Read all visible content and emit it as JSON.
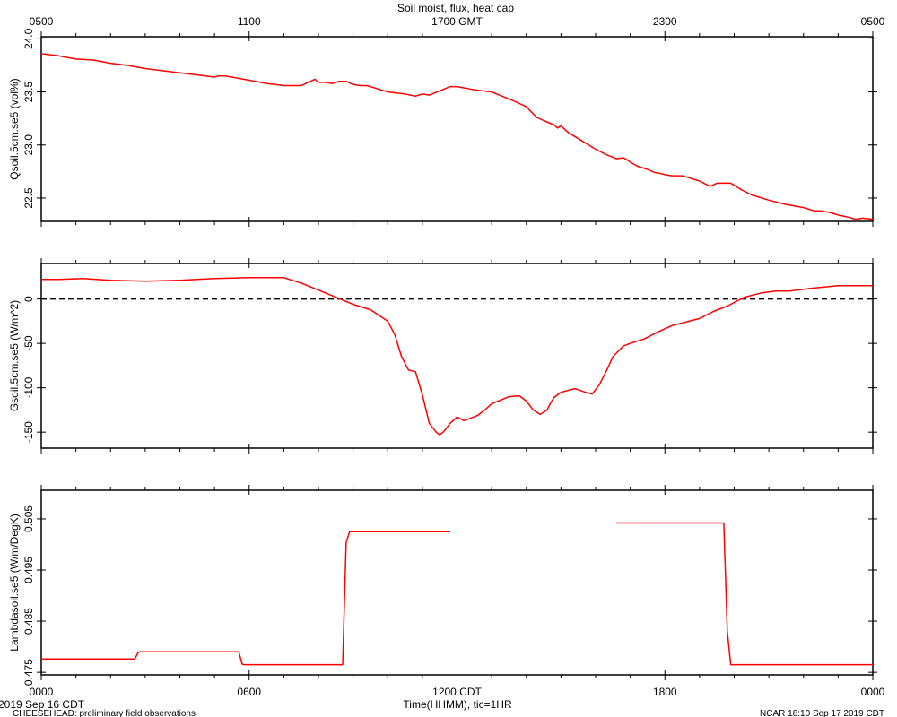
{
  "title": "Soil moist, flux, heat cap",
  "top_axis": {
    "ticks": [
      "0500",
      "1100",
      "1700 GMT",
      "2300",
      "0500"
    ]
  },
  "bottom_axis": {
    "ticks": [
      "0000",
      "0600",
      "1200 CDT",
      "1800",
      "0000"
    ],
    "label": "Time(HHMM), tic=1HR"
  },
  "footer": {
    "date": "2019 Sep 16 CDT",
    "project": "CHEESEHEAD: preliminary field observations",
    "stamp": "NCAR 18:10 Sep 17 2019 CDT"
  },
  "colors": {
    "series": "#ff0000",
    "axes": "#000000",
    "reference_line": "#000000"
  },
  "chart_data": [
    {
      "type": "line",
      "ylabel": "Qsoil.5cm.se5 (vol%)",
      "xlim": [
        0,
        24
      ],
      "ylim": [
        22.28,
        24.02
      ],
      "yticks": [
        22.5,
        23.0,
        23.5,
        24.0
      ],
      "ytick_labels": [
        "22.5",
        "23.0",
        "23.5",
        "24.0"
      ],
      "series": [
        {
          "x": [
            0,
            0.5,
            1,
            1.5,
            2,
            2.5,
            3,
            3.5,
            4,
            4.5,
            5,
            5.1,
            5.3,
            5.5,
            6,
            6.5,
            7,
            7.5,
            7.9,
            8.0,
            8.1,
            8.2,
            8.4,
            8.6,
            8.8,
            9.0,
            9.2,
            9.4,
            9.6,
            10,
            10.5,
            10.8,
            11.0,
            11.2,
            11.5,
            11.8,
            12,
            12.5,
            13,
            13.3,
            13.6,
            14,
            14.3,
            14.5,
            14.8,
            14.9,
            15,
            15.2,
            15.5,
            16,
            16.3,
            16.6,
            16.8,
            16.9,
            17,
            17.2,
            17.5,
            17.7,
            17.9,
            18.0,
            18.2,
            18.5,
            19,
            19.3,
            19.5,
            19.9,
            20.0,
            20.2,
            20.5,
            21,
            21.5,
            22,
            22.3,
            22.5,
            22.8,
            23,
            23.3,
            23.5,
            23.7,
            24
          ],
          "y": [
            23.86,
            23.84,
            23.81,
            23.8,
            23.77,
            23.75,
            23.72,
            23.7,
            23.68,
            23.66,
            23.64,
            23.65,
            23.65,
            23.64,
            23.61,
            23.58,
            23.56,
            23.56,
            23.62,
            23.59,
            23.59,
            23.59,
            23.58,
            23.6,
            23.6,
            23.57,
            23.56,
            23.56,
            23.54,
            23.5,
            23.48,
            23.46,
            23.48,
            23.47,
            23.51,
            23.55,
            23.55,
            23.52,
            23.5,
            23.46,
            23.42,
            23.36,
            23.26,
            23.23,
            23.19,
            23.16,
            23.18,
            23.12,
            23.06,
            22.96,
            22.91,
            22.87,
            22.88,
            22.86,
            22.84,
            22.8,
            22.77,
            22.74,
            22.73,
            22.72,
            22.71,
            22.71,
            22.66,
            22.61,
            22.64,
            22.64,
            22.62,
            22.58,
            22.53,
            22.48,
            22.44,
            22.41,
            22.38,
            22.38,
            22.36,
            22.34,
            22.32,
            22.3,
            22.31,
            22.3
          ]
        }
      ]
    },
    {
      "type": "line",
      "ylabel": "Gsoil.5cm.se5 (W/m^2)",
      "xlim": [
        0,
        24
      ],
      "ylim": [
        -168,
        40
      ],
      "yticks": [
        -150,
        -100,
        -50,
        0
      ],
      "ytick_labels": [
        "-150",
        "-100",
        "-50",
        "0"
      ],
      "reference_y": 0,
      "series": [
        {
          "x": [
            0,
            0.5,
            1.2,
            2,
            3,
            4,
            5,
            6,
            7,
            7.5,
            8,
            8.5,
            9,
            9.5,
            10,
            10.2,
            10.4,
            10.6,
            10.8,
            11.0,
            11.2,
            11.4,
            11.5,
            11.6,
            11.8,
            12.0,
            12.2,
            12.6,
            12.8,
            13.0,
            13.5,
            13.8,
            14.0,
            14.2,
            14.4,
            14.6,
            14.7,
            14.8,
            15.0,
            15.4,
            15.7,
            15.9,
            16.1,
            16.3,
            16.5,
            16.8,
            17.0,
            17.4,
            17.8,
            18.2,
            18.6,
            19.0,
            19.4,
            19.8,
            20.3,
            20.8,
            21.2,
            21.6,
            22.2,
            23,
            24
          ],
          "y": [
            22,
            22,
            23,
            21,
            20,
            21,
            23,
            24,
            24,
            18,
            10,
            2,
            -6,
            -12,
            -25,
            -40,
            -65,
            -80,
            -82,
            -108,
            -140,
            -150,
            -153,
            -150,
            -140,
            -133,
            -137,
            -131,
            -125,
            -118,
            -110,
            -109,
            -115,
            -125,
            -130,
            -125,
            -117,
            -111,
            -105,
            -101,
            -105,
            -107,
            -97,
            -82,
            -65,
            -53,
            -50,
            -45,
            -37,
            -30,
            -26,
            -22,
            -14,
            -8,
            2,
            7,
            9,
            9,
            12,
            15,
            15
          ]
        }
      ]
    },
    {
      "type": "line",
      "ylabel": "Lambdasoil.se5 (W/m/DegK)",
      "xlim": [
        0,
        24
      ],
      "ylim": [
        0.4745,
        0.5106
      ],
      "yticks": [
        0.475,
        0.485,
        0.495,
        0.505
      ],
      "ytick_labels": [
        "0.475",
        "0.485",
        "0.495",
        "0.505"
      ],
      "series": [
        {
          "name": "segment-1",
          "x": [
            0,
            2.7,
            2.8,
            2.85,
            5.7,
            5.8,
            5.85,
            8.7,
            8.75,
            8.8,
            8.9,
            11.8
          ],
          "y": [
            0.4776,
            0.4776,
            0.4789,
            0.479,
            0.479,
            0.4766,
            0.4765,
            0.4765,
            0.489,
            0.5004,
            0.5025,
            0.5025
          ]
        },
        {
          "name": "segment-2",
          "x": [
            16.6,
            19.7,
            19.8,
            19.9,
            24
          ],
          "y": [
            0.5042,
            0.5042,
            0.483,
            0.4765,
            0.4765
          ]
        }
      ]
    }
  ]
}
